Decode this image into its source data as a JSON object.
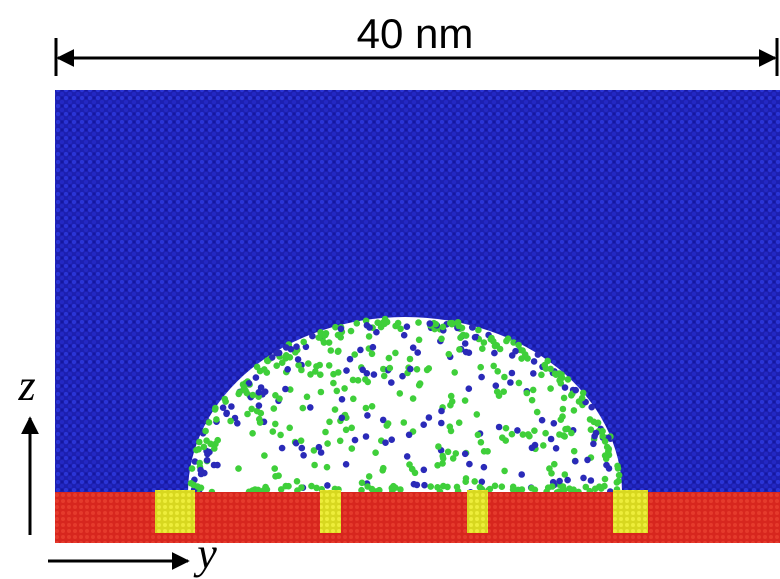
{
  "scale_bar": {
    "label": "40 nm"
  },
  "axes": {
    "vertical": "z",
    "horizontal": "y"
  }
}
